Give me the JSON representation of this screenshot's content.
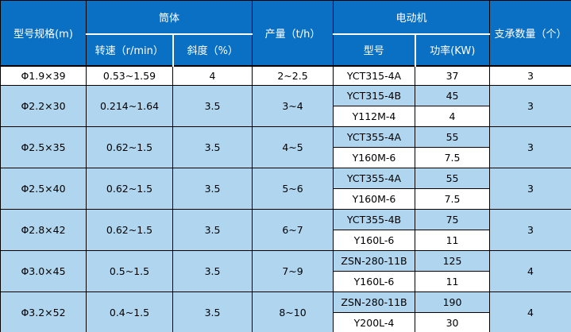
{
  "table": {
    "colors": {
      "header_bg": "#0A70C4",
      "header_divider": "#FFFFFF",
      "row_alt_bg": "#B0D5EE",
      "row_bg": "#FFFFFF",
      "grid": "#000000",
      "header_text": "#FFFFFF",
      "body_text": "#000000"
    },
    "header": {
      "model_spec": "型号规格(m)",
      "cylinder": "筒体",
      "speed": "转速（r/min）",
      "slope": "斜度（%）",
      "output": "产量（t/h）",
      "motor": "电动机",
      "motor_model": "型号",
      "motor_power": "功率(KW)",
      "supports": "支承数量（个）"
    },
    "rows": [
      {
        "spec": "Φ1.9×39",
        "speed": "0.53~1.59",
        "slope": "4",
        "output": "2~2.5",
        "supports": "3",
        "motors": [
          {
            "model": "YCT315-4A",
            "power": "37"
          }
        ]
      },
      {
        "spec": "Φ2.2×30",
        "speed": "0.214~1.64",
        "slope": "3.5",
        "output": "3~4",
        "supports": "3",
        "motors": [
          {
            "model": "YCT315-4B",
            "power": "45"
          },
          {
            "model": "Y112M-4",
            "power": "4"
          }
        ]
      },
      {
        "spec": "Φ2.5×35",
        "speed": "0.62~1.5",
        "slope": "3.5",
        "output": "4~5",
        "supports": "3",
        "motors": [
          {
            "model": "YCT355-4A",
            "power": "55"
          },
          {
            "model": "Y160M-6",
            "power": "7.5"
          }
        ]
      },
      {
        "spec": "Φ2.5×40",
        "speed": "0.62~1.5",
        "slope": "3.5",
        "output": "5~6",
        "supports": "3",
        "motors": [
          {
            "model": "YCT355-4A",
            "power": "55"
          },
          {
            "model": "Y160M-6",
            "power": "7.5"
          }
        ]
      },
      {
        "spec": "Φ2.8×42",
        "speed": "0.62~1.5",
        "slope": "3.5",
        "output": "6~7",
        "supports": "3",
        "motors": [
          {
            "model": "YCT355-4B",
            "power": "75"
          },
          {
            "model": "Y160L-6",
            "power": "11"
          }
        ]
      },
      {
        "spec": "Φ3.0×45",
        "speed": "0.5~1.5",
        "slope": "3.5",
        "output": "7~9",
        "supports": "4",
        "motors": [
          {
            "model": "ZSN-280-11B",
            "power": "125"
          },
          {
            "model": "Y160L-6",
            "power": "11"
          }
        ]
      },
      {
        "spec": "Φ3.2×52",
        "speed": "0.4~1.5",
        "slope": "3.5",
        "output": "8~10",
        "supports": "4",
        "motors": [
          {
            "model": "ZSN-280-11B",
            "power": "190"
          },
          {
            "model": "Y200L-4",
            "power": "30"
          }
        ]
      }
    ]
  }
}
